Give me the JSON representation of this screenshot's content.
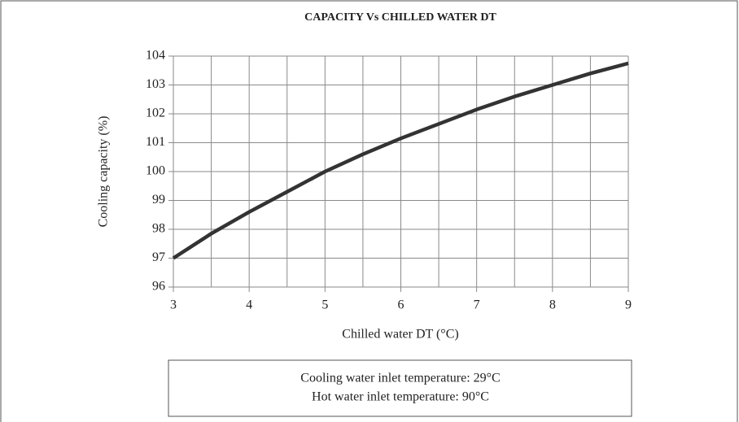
{
  "chart_data": {
    "type": "line",
    "title": "CAPACITY Vs CHILLED WATER DT",
    "x_label": "Chilled water DT (°C)",
    "y_label": "Cooling capacity (%)",
    "x": [
      3,
      3.5,
      4,
      4.5,
      5,
      5.5,
      6,
      6.5,
      7,
      7.5,
      8,
      8.5,
      9
    ],
    "series": [
      {
        "color": "#333333",
        "values": [
          97.0,
          97.85,
          98.6,
          99.3,
          100.0,
          100.6,
          101.15,
          101.65,
          102.15,
          102.6,
          103.0,
          103.4,
          103.75
        ]
      }
    ],
    "xlim": [
      3,
      9
    ],
    "xticks": [
      3,
      4,
      5,
      6,
      7,
      8,
      9
    ],
    "xminorticks": [
      3.5,
      4.5,
      5.5,
      6.5,
      7.5,
      8.5
    ],
    "ylim": [
      96,
      104
    ],
    "yticks": [
      96,
      97,
      98,
      99,
      100,
      101,
      102,
      103,
      104
    ],
    "grid": true,
    "annotations": [
      "Cooling water inlet temperature: 29°C",
      "Hot water inlet temperature: 90°C"
    ]
  }
}
